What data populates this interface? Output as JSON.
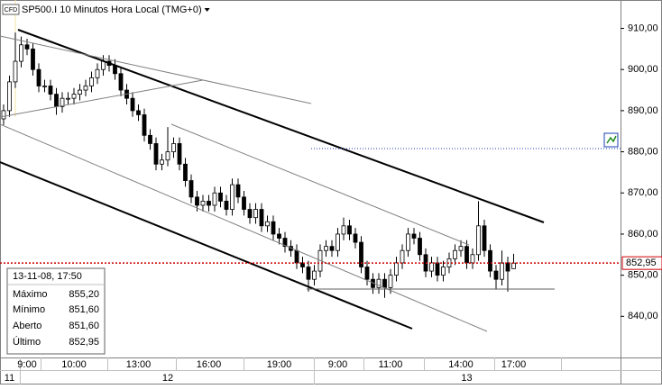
{
  "chart_data": {
    "type": "candlestick",
    "badge": "CFD",
    "title": "SP500.I 10 Minutos Hora Local (TMG+0)",
    "categories": [
      null,
      null,
      null,
      null,
      "9:00",
      null,
      null,
      null,
      null,
      null,
      null,
      null,
      "10:00",
      null,
      null,
      null,
      null,
      null,
      null,
      null,
      null,
      null,
      null,
      "13:00",
      null,
      null,
      null,
      null,
      null,
      null,
      null,
      null,
      null,
      null,
      null,
      "16:00",
      null,
      null,
      null,
      null,
      null,
      null,
      null,
      null,
      null,
      null,
      null,
      "19:00",
      null,
      null,
      null,
      null,
      null,
      null,
      null,
      null,
      null,
      "9:00",
      null,
      null,
      null,
      null,
      null,
      null,
      null,
      null,
      "11:00",
      null,
      null,
      null,
      null,
      null,
      null,
      null,
      null,
      null,
      null,
      null,
      "14:00",
      null,
      null,
      null,
      null,
      null,
      null,
      null,
      null,
      "17:00"
    ],
    "dates": [
      null,
      "11",
      null,
      null,
      null,
      null,
      null,
      null,
      null,
      null,
      null,
      null,
      null,
      null,
      null,
      null,
      null,
      null,
      null,
      null,
      null,
      null,
      null,
      null,
      null,
      null,
      null,
      null,
      "12",
      null,
      null,
      null,
      null,
      null,
      null,
      null,
      null,
      null,
      null,
      null,
      null,
      null,
      null,
      null,
      null,
      null,
      null,
      null,
      null,
      null,
      null,
      null,
      null,
      null,
      null,
      null,
      null,
      null,
      null,
      null,
      null,
      null,
      null,
      null,
      null,
      null,
      null,
      null,
      null,
      null,
      null,
      null,
      null,
      null,
      null,
      null,
      null,
      null,
      null,
      "13",
      null,
      null,
      null,
      null,
      null,
      null,
      null,
      null
    ],
    "open": [
      888,
      890,
      897,
      902,
      906,
      905,
      900,
      896,
      896,
      894,
      891,
      893,
      893,
      894,
      895,
      896,
      898,
      900,
      902,
      901,
      899,
      895,
      893,
      890,
      889,
      884,
      882,
      877,
      878,
      880,
      882,
      877,
      873,
      869,
      867,
      868,
      867,
      870,
      868,
      866,
      872,
      869,
      866,
      864,
      866,
      862,
      863,
      860,
      859,
      857,
      856,
      853,
      852,
      849,
      851,
      856,
      857,
      856,
      860,
      862,
      860,
      858,
      852,
      849,
      847,
      849,
      847,
      850,
      853,
      856,
      860,
      859,
      855,
      851,
      853,
      850,
      852,
      854,
      856,
      857,
      853,
      855,
      862,
      856,
      851,
      849,
      853,
      851.6
    ],
    "high": [
      891.5,
      898.5,
      909,
      908,
      907.5,
      906.5,
      901.5,
      897.5,
      897.5,
      895.5,
      894.5,
      894.5,
      895.5,
      896.5,
      897.5,
      899.5,
      901.5,
      903.5,
      903.5,
      902.5,
      900.5,
      896.5,
      894.5,
      891.5,
      890.5,
      885.5,
      883.5,
      879.5,
      886,
      883.5,
      883.5,
      878.5,
      874.5,
      870.5,
      869.5,
      869.5,
      871.5,
      871.5,
      869.5,
      873.5,
      873.5,
      870.5,
      867.5,
      867.5,
      867.5,
      864.5,
      864.5,
      861.5,
      860.5,
      858.5,
      857.5,
      854.5,
      853.5,
      852.5,
      857.5,
      858.5,
      858.5,
      861.5,
      864,
      863.5,
      861.5,
      859.5,
      853.5,
      850.5,
      850.5,
      850.5,
      851.5,
      854.5,
      857.5,
      861.5,
      861.5,
      860.5,
      856.5,
      854.5,
      854.5,
      853.5,
      855.5,
      857.5,
      858.5,
      858.5,
      856.5,
      868,
      863.5,
      857.5,
      852.5,
      856,
      854.5,
      855.2
    ],
    "low": [
      886.5,
      888.5,
      895.5,
      900.5,
      903.5,
      898.5,
      894.5,
      894.5,
      892.5,
      889,
      889.5,
      891.5,
      891.5,
      892.5,
      893.5,
      894.5,
      896.5,
      898.5,
      899.5,
      897.5,
      893.5,
      891.5,
      888.5,
      887.5,
      882.5,
      880.5,
      875.5,
      875.5,
      876.5,
      878.5,
      875.5,
      871.5,
      867.5,
      865.5,
      865.5,
      865.5,
      865.5,
      866.5,
      864.5,
      864.5,
      867.5,
      864.5,
      862.5,
      862.5,
      860.5,
      860.5,
      858.5,
      857.5,
      855.5,
      854.5,
      851.5,
      850.5,
      846,
      847.5,
      849.5,
      854.5,
      854.5,
      854.5,
      858.5,
      858.5,
      856.5,
      850.5,
      847.5,
      845.5,
      845.5,
      844.5,
      845.5,
      848.5,
      851.5,
      854.5,
      857.5,
      853.5,
      849.5,
      849.5,
      848.5,
      848.5,
      850.5,
      852.5,
      854.5,
      851.5,
      851.5,
      853.5,
      854.5,
      849.5,
      846.5,
      847.5,
      846,
      851.6
    ],
    "close": [
      890,
      897,
      902,
      906,
      905,
      900,
      896,
      896,
      894,
      891,
      893,
      893,
      894,
      895,
      896,
      898,
      900,
      902,
      901,
      899,
      895,
      893,
      890,
      889,
      884,
      882,
      877,
      878,
      880,
      882,
      877,
      873,
      869,
      867,
      868,
      867,
      870,
      868,
      866,
      872,
      869,
      866,
      864,
      866,
      862,
      863,
      860,
      859,
      857,
      856,
      853,
      852,
      849,
      851,
      856,
      857,
      856,
      860,
      862,
      860,
      858,
      852,
      849,
      847,
      849,
      847,
      850,
      853,
      856,
      860,
      859,
      855,
      851,
      853,
      850,
      852,
      854,
      856,
      857,
      853,
      855,
      862,
      856,
      851,
      849,
      853,
      851,
      852.95
    ],
    "up_color": "#ffffff",
    "down_color": "#000000",
    "ylim": [
      830,
      916.9
    ],
    "yticks": [
      {
        "value": 840,
        "label": "840,00"
      },
      {
        "value": 850,
        "label": "850,00"
      },
      {
        "value": 860,
        "label": "860,00"
      },
      {
        "value": 870,
        "label": "870,00"
      },
      {
        "value": 880,
        "label": "880,00"
      },
      {
        "value": 890,
        "label": "890,00"
      },
      {
        "value": 900,
        "label": "900,00"
      },
      {
        "value": 910,
        "label": "910,00"
      }
    ],
    "last_price": {
      "value": 852.95,
      "label": "852,95"
    },
    "last_price_color": "#cc0000",
    "info": {
      "header": "13-11-08, 17:50",
      "rows": [
        {
          "label": "Máximo",
          "value": "855,20"
        },
        {
          "label": "Mínimo",
          "value": "851,60"
        },
        {
          "label": "Aberto",
          "value": "851,60"
        },
        {
          "label": "Último",
          "value": "852,95"
        }
      ]
    }
  }
}
